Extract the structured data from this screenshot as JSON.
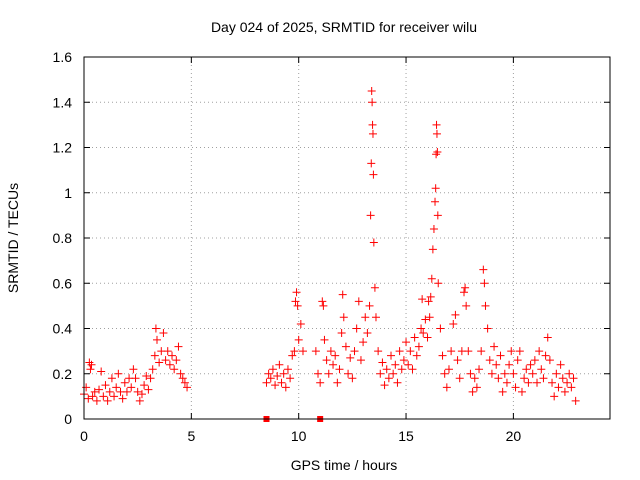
{
  "chart_data": {
    "type": "scatter",
    "title": "Day 024 of 2025, SRMTID for receiver wilu",
    "xlabel": "GPS time / hours",
    "ylabel": "SRMTID / TECUs",
    "xlim": [
      0,
      24.5
    ],
    "ylim": [
      0,
      1.6
    ],
    "x_ticks": [
      0,
      5,
      10,
      15,
      20
    ],
    "x_tick_labels": [
      "0",
      "5",
      "10",
      "15",
      "20"
    ],
    "y_ticks": [
      0,
      0.2,
      0.4,
      0.6,
      0.8,
      1.0,
      1.2,
      1.4,
      1.6
    ],
    "y_tick_labels": [
      "0",
      "0.2",
      "0.4",
      "0.6",
      "0.8",
      "1",
      "1.2",
      "1.4",
      "1.6"
    ],
    "grid": true,
    "marker": "plus",
    "color": "#ff0000",
    "zero_markers_x": [
      8.5,
      11.0
    ],
    "series": [
      {
        "name": "SRMTID",
        "points": [
          [
            0.0,
            0.11
          ],
          [
            0.1,
            0.14
          ],
          [
            0.2,
            0.09
          ],
          [
            0.25,
            0.25
          ],
          [
            0.3,
            0.22
          ],
          [
            0.35,
            0.24
          ],
          [
            0.4,
            0.1
          ],
          [
            0.5,
            0.12
          ],
          [
            0.6,
            0.08
          ],
          [
            0.7,
            0.13
          ],
          [
            0.8,
            0.21
          ],
          [
            0.9,
            0.1
          ],
          [
            1.0,
            0.15
          ],
          [
            1.1,
            0.08
          ],
          [
            1.2,
            0.12
          ],
          [
            1.3,
            0.18
          ],
          [
            1.4,
            0.1
          ],
          [
            1.5,
            0.14
          ],
          [
            1.6,
            0.2
          ],
          [
            1.7,
            0.12
          ],
          [
            1.8,
            0.09
          ],
          [
            1.9,
            0.16
          ],
          [
            2.0,
            0.12
          ],
          [
            2.1,
            0.18
          ],
          [
            2.2,
            0.14
          ],
          [
            2.3,
            0.22
          ],
          [
            2.4,
            0.18
          ],
          [
            2.5,
            0.12
          ],
          [
            2.6,
            0.08
          ],
          [
            2.7,
            0.11
          ],
          [
            2.8,
            0.15
          ],
          [
            2.9,
            0.19
          ],
          [
            3.0,
            0.13
          ],
          [
            3.1,
            0.18
          ],
          [
            3.2,
            0.22
          ],
          [
            3.3,
            0.28
          ],
          [
            3.35,
            0.4
          ],
          [
            3.4,
            0.35
          ],
          [
            3.5,
            0.25
          ],
          [
            3.6,
            0.3
          ],
          [
            3.7,
            0.38
          ],
          [
            3.8,
            0.26
          ],
          [
            3.9,
            0.3
          ],
          [
            4.0,
            0.24
          ],
          [
            4.1,
            0.28
          ],
          [
            4.2,
            0.22
          ],
          [
            4.3,
            0.26
          ],
          [
            4.4,
            0.32
          ],
          [
            4.5,
            0.2
          ],
          [
            4.6,
            0.18
          ],
          [
            4.7,
            0.16
          ],
          [
            4.8,
            0.14
          ],
          [
            8.5,
            0.16
          ],
          [
            8.6,
            0.2
          ],
          [
            8.7,
            0.18
          ],
          [
            8.8,
            0.22
          ],
          [
            8.9,
            0.15
          ],
          [
            9.0,
            0.19
          ],
          [
            9.1,
            0.24
          ],
          [
            9.2,
            0.16
          ],
          [
            9.3,
            0.2
          ],
          [
            9.4,
            0.14
          ],
          [
            9.5,
            0.22
          ],
          [
            9.6,
            0.18
          ],
          [
            9.7,
            0.28
          ],
          [
            9.8,
            0.3
          ],
          [
            9.85,
            0.52
          ],
          [
            9.9,
            0.56
          ],
          [
            9.95,
            0.5
          ],
          [
            10.0,
            0.35
          ],
          [
            10.1,
            0.42
          ],
          [
            10.2,
            0.3
          ],
          [
            10.8,
            0.3
          ],
          [
            10.9,
            0.2
          ],
          [
            11.0,
            0.16
          ],
          [
            11.1,
            0.52
          ],
          [
            11.15,
            0.5
          ],
          [
            11.2,
            0.35
          ],
          [
            11.3,
            0.26
          ],
          [
            11.4,
            0.2
          ],
          [
            11.5,
            0.3
          ],
          [
            11.6,
            0.24
          ],
          [
            11.7,
            0.28
          ],
          [
            11.8,
            0.16
          ],
          [
            11.9,
            0.22
          ],
          [
            12.0,
            0.38
          ],
          [
            12.05,
            0.55
          ],
          [
            12.1,
            0.45
          ],
          [
            12.2,
            0.32
          ],
          [
            12.3,
            0.2
          ],
          [
            12.4,
            0.27
          ],
          [
            12.5,
            0.18
          ],
          [
            12.6,
            0.3
          ],
          [
            12.7,
            0.4
          ],
          [
            12.8,
            0.52
          ],
          [
            12.9,
            0.26
          ],
          [
            13.0,
            0.34
          ],
          [
            13.1,
            0.45
          ],
          [
            13.2,
            0.38
          ],
          [
            13.3,
            0.5
          ],
          [
            13.35,
            0.9
          ],
          [
            13.38,
            1.13
          ],
          [
            13.4,
            1.45
          ],
          [
            13.42,
            1.4
          ],
          [
            13.44,
            1.3
          ],
          [
            13.46,
            1.26
          ],
          [
            13.48,
            1.08
          ],
          [
            13.5,
            0.78
          ],
          [
            13.55,
            0.58
          ],
          [
            13.6,
            0.45
          ],
          [
            13.7,
            0.3
          ],
          [
            13.8,
            0.2
          ],
          [
            13.9,
            0.25
          ],
          [
            14.0,
            0.15
          ],
          [
            14.1,
            0.22
          ],
          [
            14.2,
            0.18
          ],
          [
            14.3,
            0.28
          ],
          [
            14.4,
            0.2
          ],
          [
            14.5,
            0.24
          ],
          [
            14.6,
            0.16
          ],
          [
            14.7,
            0.3
          ],
          [
            14.8,
            0.22
          ],
          [
            14.9,
            0.26
          ],
          [
            15.0,
            0.34
          ],
          [
            15.1,
            0.24
          ],
          [
            15.2,
            0.3
          ],
          [
            15.3,
            0.22
          ],
          [
            15.4,
            0.36
          ],
          [
            15.5,
            0.28
          ],
          [
            15.6,
            0.32
          ],
          [
            15.7,
            0.4
          ],
          [
            15.75,
            0.53
          ],
          [
            15.8,
            0.38
          ],
          [
            15.9,
            0.44
          ],
          [
            16.0,
            0.36
          ],
          [
            16.05,
            0.52
          ],
          [
            16.1,
            0.45
          ],
          [
            16.15,
            0.54
          ],
          [
            16.2,
            0.62
          ],
          [
            16.25,
            0.75
          ],
          [
            16.3,
            0.84
          ],
          [
            16.35,
            0.96
          ],
          [
            16.38,
            1.02
          ],
          [
            16.4,
            1.17
          ],
          [
            16.42,
            1.3
          ],
          [
            16.44,
            1.26
          ],
          [
            16.46,
            1.18
          ],
          [
            16.48,
            0.9
          ],
          [
            16.5,
            0.6
          ],
          [
            16.6,
            0.4
          ],
          [
            16.7,
            0.28
          ],
          [
            16.8,
            0.2
          ],
          [
            16.9,
            0.14
          ],
          [
            17.0,
            0.22
          ],
          [
            17.1,
            0.3
          ],
          [
            17.2,
            0.42
          ],
          [
            17.3,
            0.46
          ],
          [
            17.4,
            0.26
          ],
          [
            17.5,
            0.18
          ],
          [
            17.6,
            0.3
          ],
          [
            17.7,
            0.56
          ],
          [
            17.75,
            0.58
          ],
          [
            17.8,
            0.5
          ],
          [
            17.9,
            0.3
          ],
          [
            18.0,
            0.2
          ],
          [
            18.1,
            0.12
          ],
          [
            18.2,
            0.18
          ],
          [
            18.3,
            0.14
          ],
          [
            18.4,
            0.22
          ],
          [
            18.5,
            0.3
          ],
          [
            18.6,
            0.66
          ],
          [
            18.65,
            0.6
          ],
          [
            18.7,
            0.5
          ],
          [
            18.8,
            0.4
          ],
          [
            18.9,
            0.26
          ],
          [
            19.0,
            0.2
          ],
          [
            19.1,
            0.32
          ],
          [
            19.2,
            0.24
          ],
          [
            19.3,
            0.18
          ],
          [
            19.4,
            0.28
          ],
          [
            19.5,
            0.12
          ],
          [
            19.6,
            0.2
          ],
          [
            19.7,
            0.16
          ],
          [
            19.8,
            0.24
          ],
          [
            19.9,
            0.3
          ],
          [
            20.0,
            0.2
          ],
          [
            20.1,
            0.14
          ],
          [
            20.2,
            0.26
          ],
          [
            20.3,
            0.3
          ],
          [
            20.4,
            0.12
          ],
          [
            20.5,
            0.18
          ],
          [
            20.6,
            0.22
          ],
          [
            20.7,
            0.16
          ],
          [
            20.8,
            0.24
          ],
          [
            20.9,
            0.2
          ],
          [
            21.0,
            0.26
          ],
          [
            21.1,
            0.16
          ],
          [
            21.2,
            0.3
          ],
          [
            21.3,
            0.22
          ],
          [
            21.4,
            0.18
          ],
          [
            21.5,
            0.28
          ],
          [
            21.6,
            0.36
          ],
          [
            21.7,
            0.26
          ],
          [
            21.8,
            0.16
          ],
          [
            21.9,
            0.1
          ],
          [
            22.0,
            0.2
          ],
          [
            22.1,
            0.14
          ],
          [
            22.2,
            0.24
          ],
          [
            22.3,
            0.18
          ],
          [
            22.4,
            0.12
          ],
          [
            22.5,
            0.16
          ],
          [
            22.6,
            0.2
          ],
          [
            22.7,
            0.14
          ],
          [
            22.8,
            0.18
          ],
          [
            22.9,
            0.08
          ]
        ]
      }
    ]
  }
}
